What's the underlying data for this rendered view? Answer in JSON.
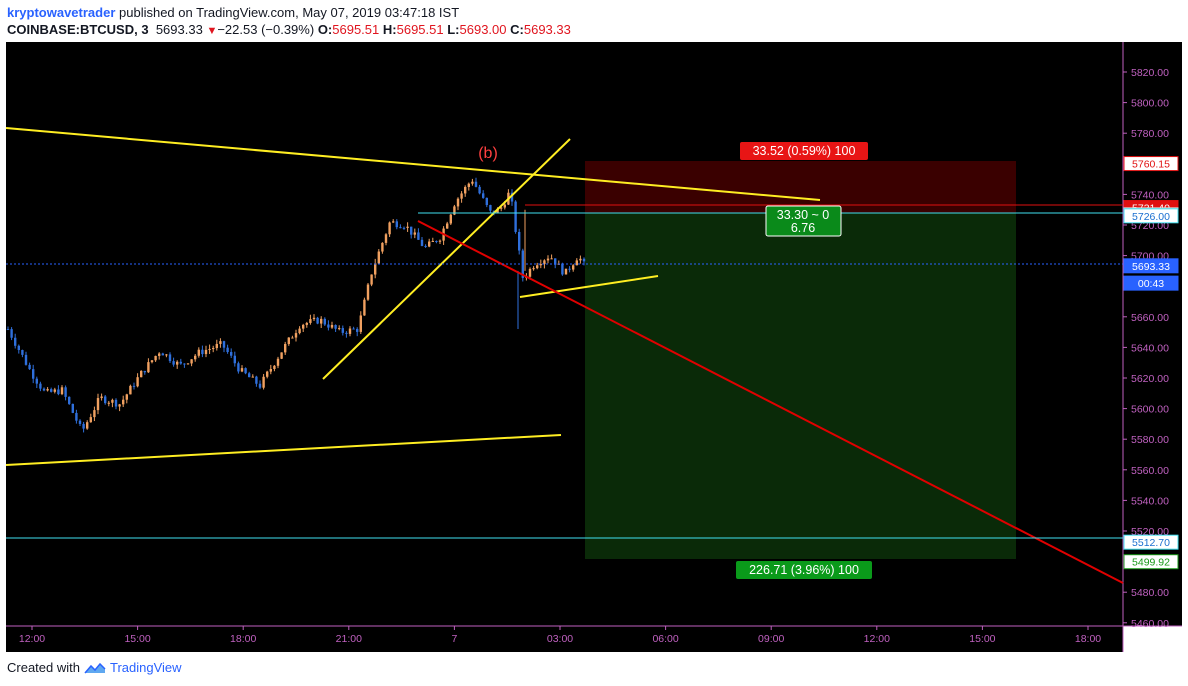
{
  "header": {
    "author": "kryptowavetrader",
    "published_text": " published on TradingView.com, May 07, 2019 03:47:18 IST",
    "symbol": "COINBASE:BTCUSD, 3",
    "last": "5693.33",
    "change": "−22.53 (−0.39%)",
    "o_label": "O:",
    "o_value": "5695.51",
    "h_label": "H:",
    "h_value": "5695.51",
    "l_label": "L:",
    "l_value": "5693.00",
    "c_label": "C:",
    "c_value": "5693.33"
  },
  "footer": {
    "created_with": "Created with",
    "brand": "TradingView"
  },
  "colors": {
    "background": "#000000",
    "candle_up": "#f0a060",
    "candle_down": "#2f6fdb",
    "trend_yellow": "#ffee22",
    "trend_red": "#e00000",
    "cyan": "#40e0f0",
    "loss_zone": "#3a0000",
    "profit_zone": "#0a2a08",
    "axis_text": "#c061c0"
  },
  "y_axis": {
    "ticks": [
      "5820.00",
      "5800.00",
      "5780.00",
      "5760.00",
      "5740.00",
      "5720.00",
      "5700.00",
      "5680.00",
      "5660.00",
      "5640.00",
      "5620.00",
      "5600.00",
      "5580.00",
      "5560.00",
      "5540.00",
      "5520.00",
      "5500.00",
      "5480.00",
      "5460.00"
    ],
    "tags": [
      {
        "label": "5760.15",
        "bg": "#ffffff",
        "fg": "#e01010",
        "border": "#e01010",
        "value": 5760.15
      },
      {
        "label": "5731.40",
        "bg": "#e01010",
        "fg": "#ffffff",
        "border": "#e01010",
        "value": 5731.4
      },
      {
        "label": "5726.63",
        "bg": "#d8d8d8",
        "fg": "#000000",
        "border": "#d8d8d8",
        "value": 5726.63
      },
      {
        "label": "5726.00",
        "bg": "#ffffff",
        "fg": "#1a6fd0",
        "border": "#40e0f0",
        "value": 5726.0
      },
      {
        "label": "5693.33",
        "bg": "#2962ff",
        "fg": "#ffffff",
        "border": "#2962ff",
        "value": 5693.33
      },
      {
        "label": "00:43",
        "bg": "#2962ff",
        "fg": "#ffffff",
        "border": "#2962ff",
        "value": 5682.0
      },
      {
        "label": "5512.70",
        "bg": "#ffffff",
        "fg": "#1a6fd0",
        "border": "#40e0f0",
        "value": 5512.7
      },
      {
        "label": "5499.92",
        "bg": "#ffffff",
        "fg": "#1a9a1a",
        "border": "#1a9a1a",
        "value": 5499.92
      }
    ]
  },
  "x_axis": {
    "ticks": [
      "12:00",
      "15:00",
      "18:00",
      "21:00",
      "7",
      "03:00",
      "06:00",
      "09:00",
      "12:00",
      "15:00",
      "18:00"
    ]
  },
  "annotations": {
    "wave_label": "(b)",
    "stop_box": "33.52 (0.59%) 100",
    "center_box_line1": "33.30 ~ 0",
    "center_box_line2": "6.76",
    "target_box": "226.71 (3.96%) 100"
  },
  "position": {
    "entry": 5726.63,
    "stop": 5760.15,
    "target": 5499.92
  }
}
